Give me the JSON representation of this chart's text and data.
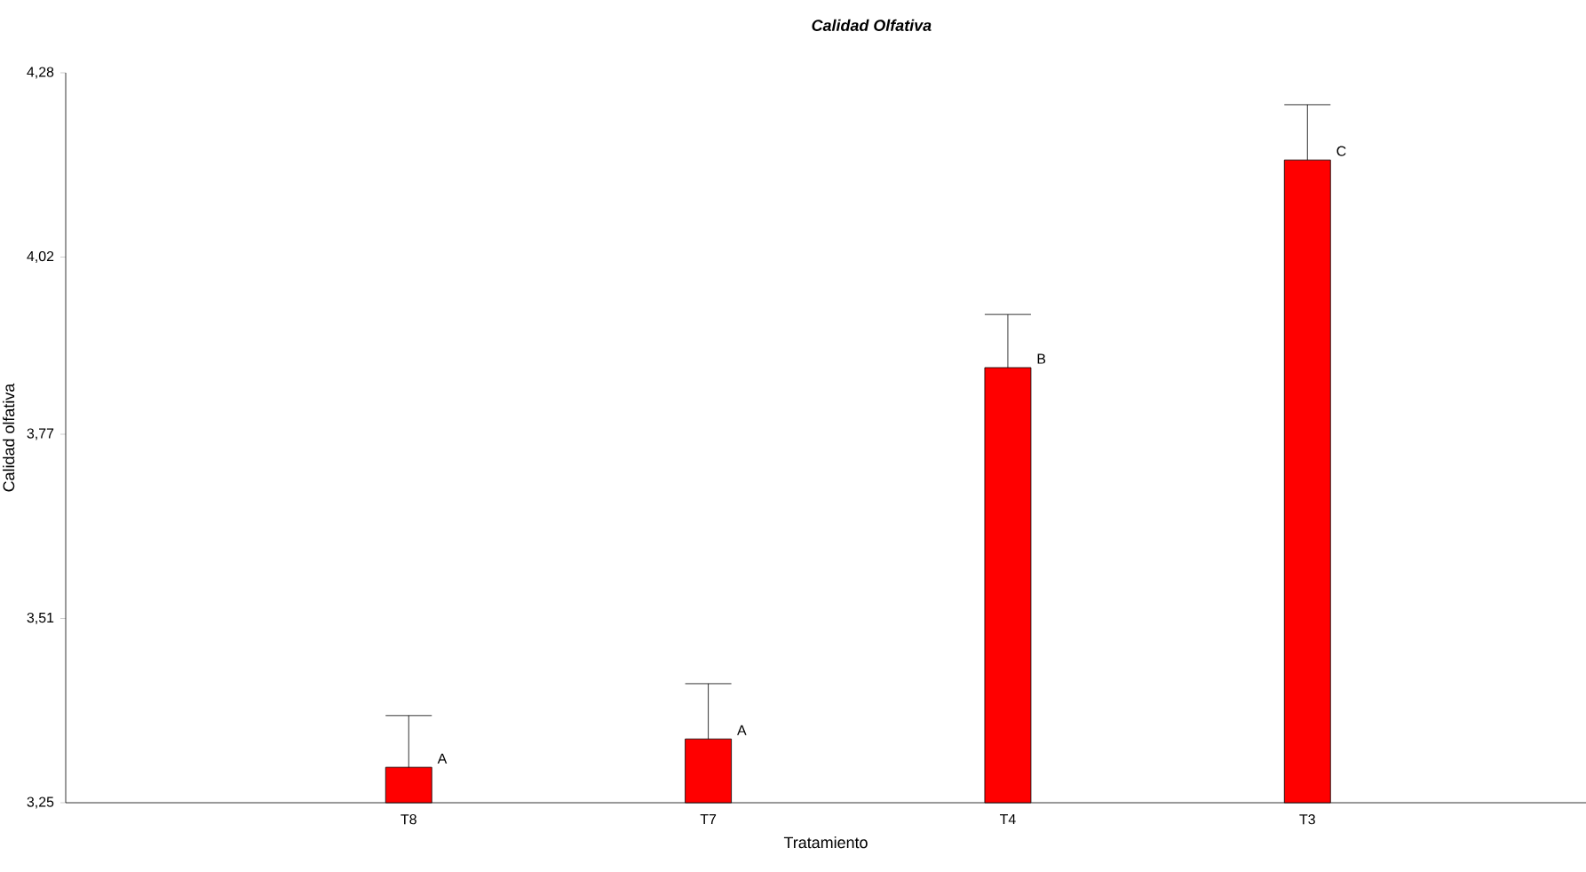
{
  "chart_data": {
    "type": "bar",
    "title": "Calidad Olfativa",
    "xlabel": "Tratamiento",
    "ylabel": "Calidad olfativa",
    "categories": [
      "T8",
      "T7",
      "T4",
      "T3"
    ],
    "values": [
      3.3,
      3.34,
      3.864,
      4.157
    ],
    "errors": [
      [
        3.3,
        3.373
      ],
      [
        3.34,
        3.418
      ],
      [
        3.864,
        3.939
      ],
      [
        4.157,
        4.235
      ]
    ],
    "color": "#ff0000",
    "ylim": [
      3.25,
      4.28
    ],
    "yticks": [
      {
        "value": 3.25,
        "label": "3,25"
      },
      {
        "value": 3.51,
        "label": "3,51"
      },
      {
        "value": 3.77,
        "label": "3,77"
      },
      {
        "value": 4.02,
        "label": "4,02"
      },
      {
        "value": 4.28,
        "label": "4,28"
      }
    ],
    "grid": false,
    "annotations": [
      {
        "text": "A",
        "x": "T8",
        "y": 3.3
      },
      {
        "text": "A",
        "x": "T7",
        "y": 3.34
      },
      {
        "text": "B",
        "x": "T4",
        "y": 3.864
      },
      {
        "text": "C",
        "x": "T3",
        "y": 4.157
      }
    ]
  }
}
